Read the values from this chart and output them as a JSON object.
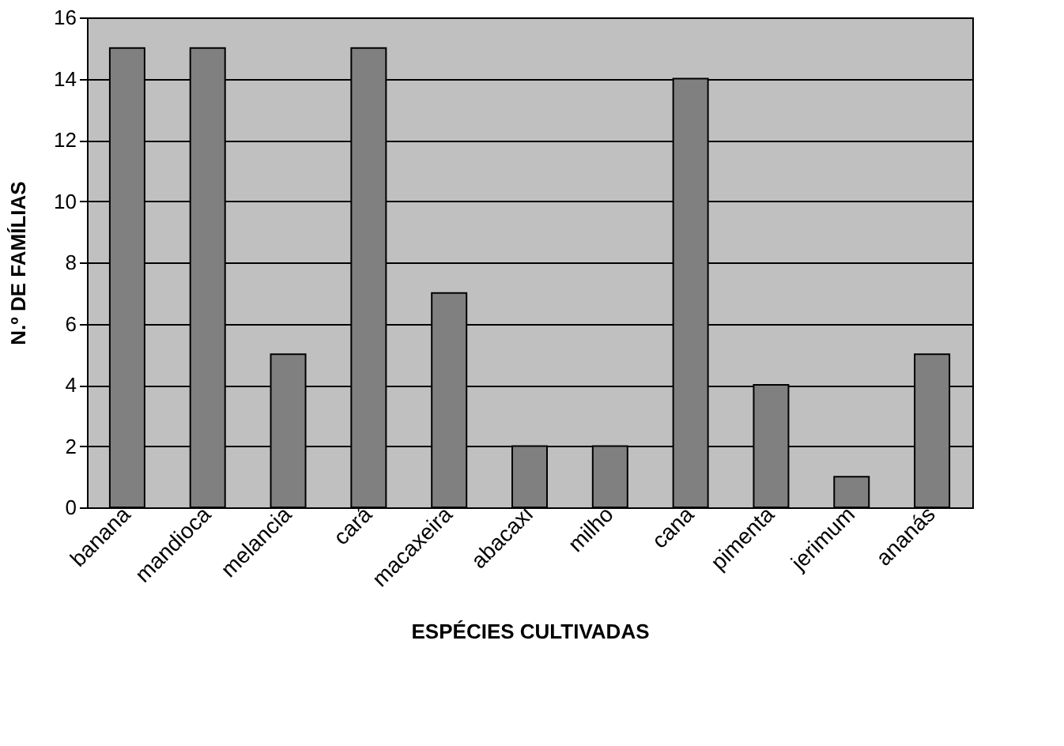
{
  "chart_data": {
    "type": "bar",
    "xlabel": "ESPÉCIES CULTIVADAS",
    "ylabel": "N.º DE FAMÍLIAS",
    "categories": [
      "banana",
      "mandioca",
      "melancia",
      "cará",
      "macaxeira",
      "abacaxi",
      "milho",
      "cana",
      "pimenta",
      "jerimum",
      "ananás"
    ],
    "values": [
      15,
      15,
      5,
      15,
      7,
      2,
      2,
      14,
      4,
      1,
      5
    ],
    "color": "#808080",
    "ylim": [
      0,
      16
    ],
    "yticks": [
      0,
      2,
      4,
      6,
      8,
      10,
      12,
      14,
      16
    ],
    "grid": "y"
  }
}
